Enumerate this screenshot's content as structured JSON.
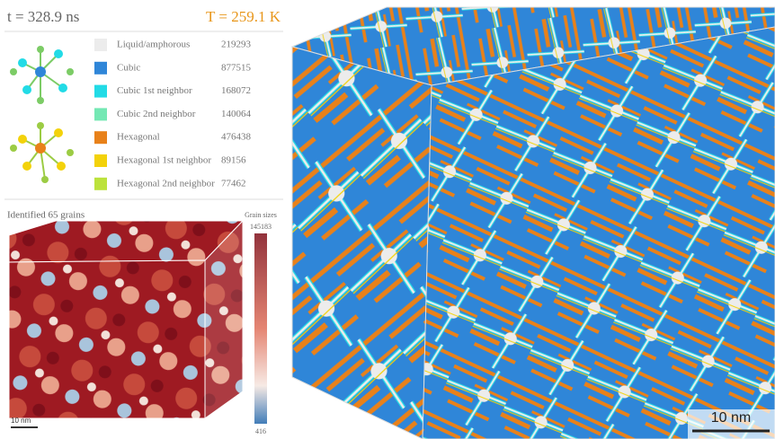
{
  "header": {
    "time": "t = 328.9 ns",
    "temperature": "T = 259.1 K"
  },
  "legend": [
    {
      "label": "Liquid/amphorous",
      "count": 219293,
      "color": "#ececec"
    },
    {
      "label": "Cubic",
      "count": 877515,
      "color": "#2f86d8"
    },
    {
      "label": "Cubic 1st neighbor",
      "count": 168072,
      "color": "#22dbe6"
    },
    {
      "label": "Cubic 2nd neighbor",
      "count": 140064,
      "color": "#74e8b4"
    },
    {
      "label": "Hexagonal",
      "count": 476438,
      "color": "#e8811a"
    },
    {
      "label": "Hexagonal 1st neighbor",
      "count": 89156,
      "color": "#f3d20a"
    },
    {
      "label": "Hexagonal 2nd neighbor",
      "count": 77462,
      "color": "#bce23c"
    }
  ],
  "grains": {
    "title": "Identified 65 grains",
    "colorbar_title": "Grain sizes",
    "max": "145183",
    "min": "416",
    "scale_bar": "10 nm"
  },
  "main": {
    "scale_bar": "10 nm"
  }
}
